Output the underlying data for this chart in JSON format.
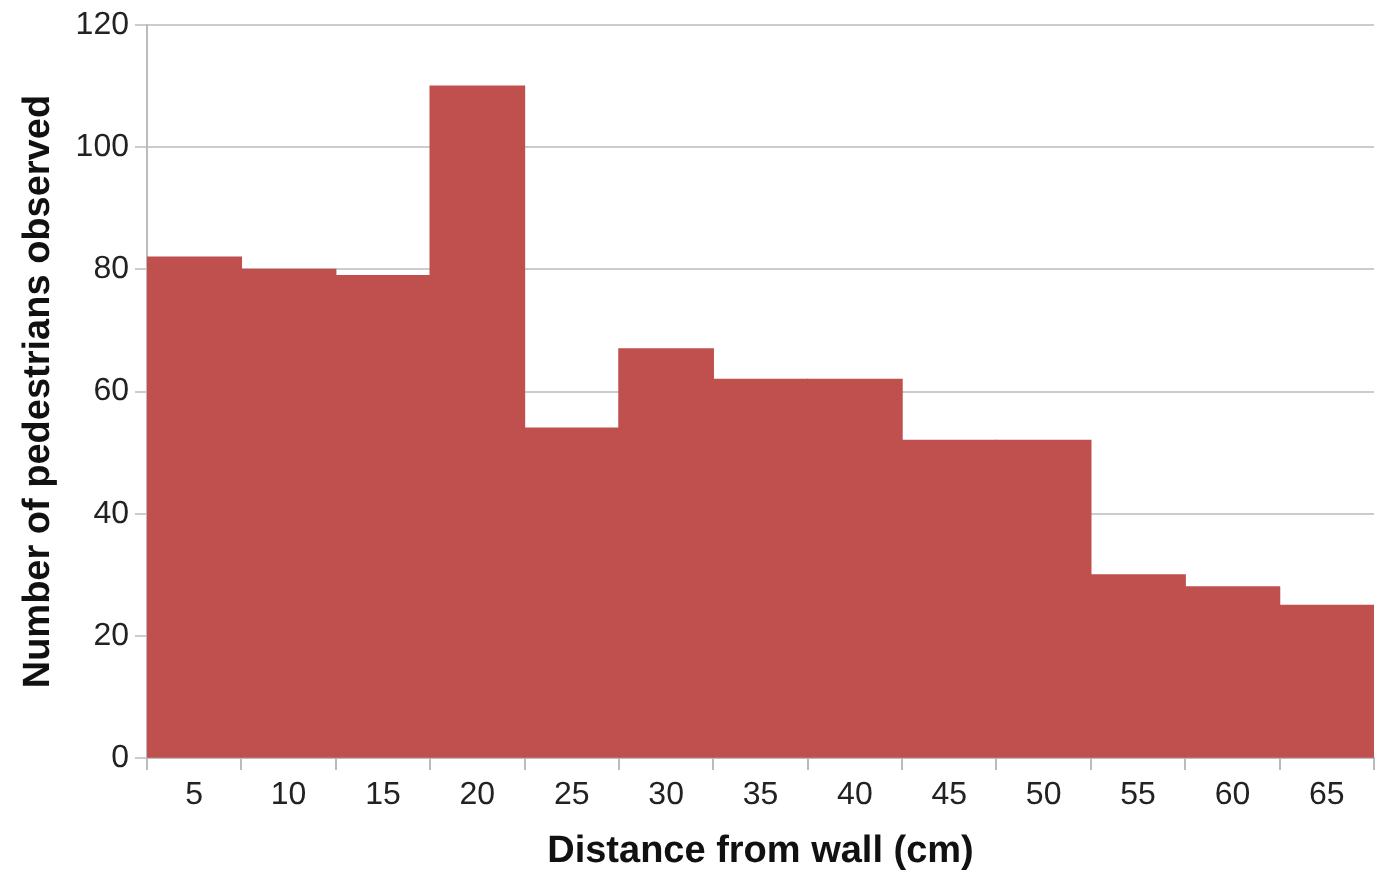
{
  "chart_data": {
    "type": "bar",
    "xlabel": "Distance from wall (cm)",
    "ylabel": "Number of pedestrians observed",
    "categories": [
      "5",
      "10",
      "15",
      "20",
      "25",
      "30",
      "35",
      "40",
      "45",
      "50",
      "55",
      "60",
      "65"
    ],
    "values": [
      82,
      80,
      79,
      110,
      54,
      67,
      62,
      62,
      52,
      52,
      30,
      28,
      25
    ],
    "color": "#c0504d",
    "ylim": [
      0,
      120
    ],
    "yticks": [
      0,
      20,
      40,
      60,
      80,
      100,
      120
    ],
    "grid": "y",
    "legend": false
  }
}
